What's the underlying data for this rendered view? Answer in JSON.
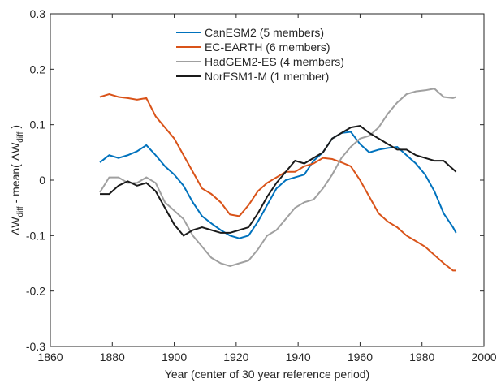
{
  "chart_data": {
    "type": "line",
    "x_label": "Year (center of 30 year reference period)",
    "y_label_parts": [
      "ΔW",
      "diff",
      " - mean( ΔW",
      "diff",
      " )"
    ],
    "xlim": [
      1860,
      2000
    ],
    "xticks": [
      1860,
      1880,
      1900,
      1920,
      1940,
      1960,
      1980,
      2000
    ],
    "ylim": [
      -0.3,
      0.3
    ],
    "yticks": [
      -0.3,
      -0.2,
      -0.1,
      0,
      0.1,
      0.2,
      0.3
    ],
    "grid": false,
    "legend": "upper center",
    "x": [
      1876,
      1879,
      1882,
      1885,
      1888,
      1891,
      1894,
      1897,
      1900,
      1903,
      1906,
      1909,
      1912,
      1915,
      1918,
      1921,
      1924,
      1927,
      1930,
      1933,
      1936,
      1939,
      1942,
      1945,
      1948,
      1951,
      1954,
      1957,
      1960,
      1963,
      1966,
      1969,
      1972,
      1975,
      1978,
      1981,
      1984,
      1987,
      1990,
      1991
    ],
    "series": [
      {
        "name": "CanESM2 (5 members)",
        "color": "#0072bd",
        "values": [
          0.032,
          0.045,
          0.04,
          0.045,
          0.052,
          0.063,
          0.045,
          0.025,
          0.01,
          -0.01,
          -0.04,
          -0.065,
          -0.078,
          -0.09,
          -0.1,
          -0.105,
          -0.1,
          -0.075,
          -0.045,
          -0.015,
          0.0,
          0.005,
          0.01,
          0.035,
          0.05,
          0.075,
          0.085,
          0.087,
          0.065,
          0.05,
          0.055,
          0.058,
          0.06,
          0.045,
          0.03,
          0.01,
          -0.02,
          -0.06,
          -0.085,
          -0.095
        ]
      },
      {
        "name": "EC-EARTH (6 members)",
        "color": "#d95319",
        "values": [
          0.15,
          0.155,
          0.15,
          0.148,
          0.145,
          0.148,
          0.115,
          0.095,
          0.075,
          0.045,
          0.015,
          -0.015,
          -0.025,
          -0.04,
          -0.062,
          -0.065,
          -0.045,
          -0.02,
          -0.005,
          0.005,
          0.015,
          0.015,
          0.025,
          0.03,
          0.04,
          0.038,
          0.032,
          0.025,
          0.0,
          -0.03,
          -0.06,
          -0.075,
          -0.085,
          -0.1,
          -0.11,
          -0.12,
          -0.135,
          -0.15,
          -0.163,
          -0.163
        ]
      },
      {
        "name": "HadGEM2-ES (4 members)",
        "color": "#a0a0a0",
        "values": [
          -0.022,
          0.005,
          0.005,
          -0.005,
          -0.005,
          0.005,
          -0.005,
          -0.04,
          -0.055,
          -0.07,
          -0.1,
          -0.12,
          -0.14,
          -0.15,
          -0.155,
          -0.15,
          -0.145,
          -0.125,
          -0.1,
          -0.09,
          -0.07,
          -0.05,
          -0.04,
          -0.035,
          -0.015,
          0.01,
          0.04,
          0.06,
          0.075,
          0.08,
          0.095,
          0.12,
          0.14,
          0.155,
          0.16,
          0.162,
          0.165,
          0.15,
          0.148,
          0.15
        ]
      },
      {
        "name": "NorESM1-M (1 member)",
        "color": "#1a1a1a",
        "values": [
          -0.025,
          -0.025,
          -0.01,
          -0.002,
          -0.01,
          -0.005,
          -0.02,
          -0.05,
          -0.08,
          -0.1,
          -0.09,
          -0.085,
          -0.09,
          -0.095,
          -0.095,
          -0.09,
          -0.085,
          -0.06,
          -0.03,
          -0.005,
          0.015,
          0.035,
          0.03,
          0.04,
          0.05,
          0.075,
          0.085,
          0.095,
          0.098,
          0.085,
          0.075,
          0.065,
          0.055,
          0.055,
          0.045,
          0.04,
          0.035,
          0.035,
          0.02,
          0.015
        ]
      }
    ]
  }
}
